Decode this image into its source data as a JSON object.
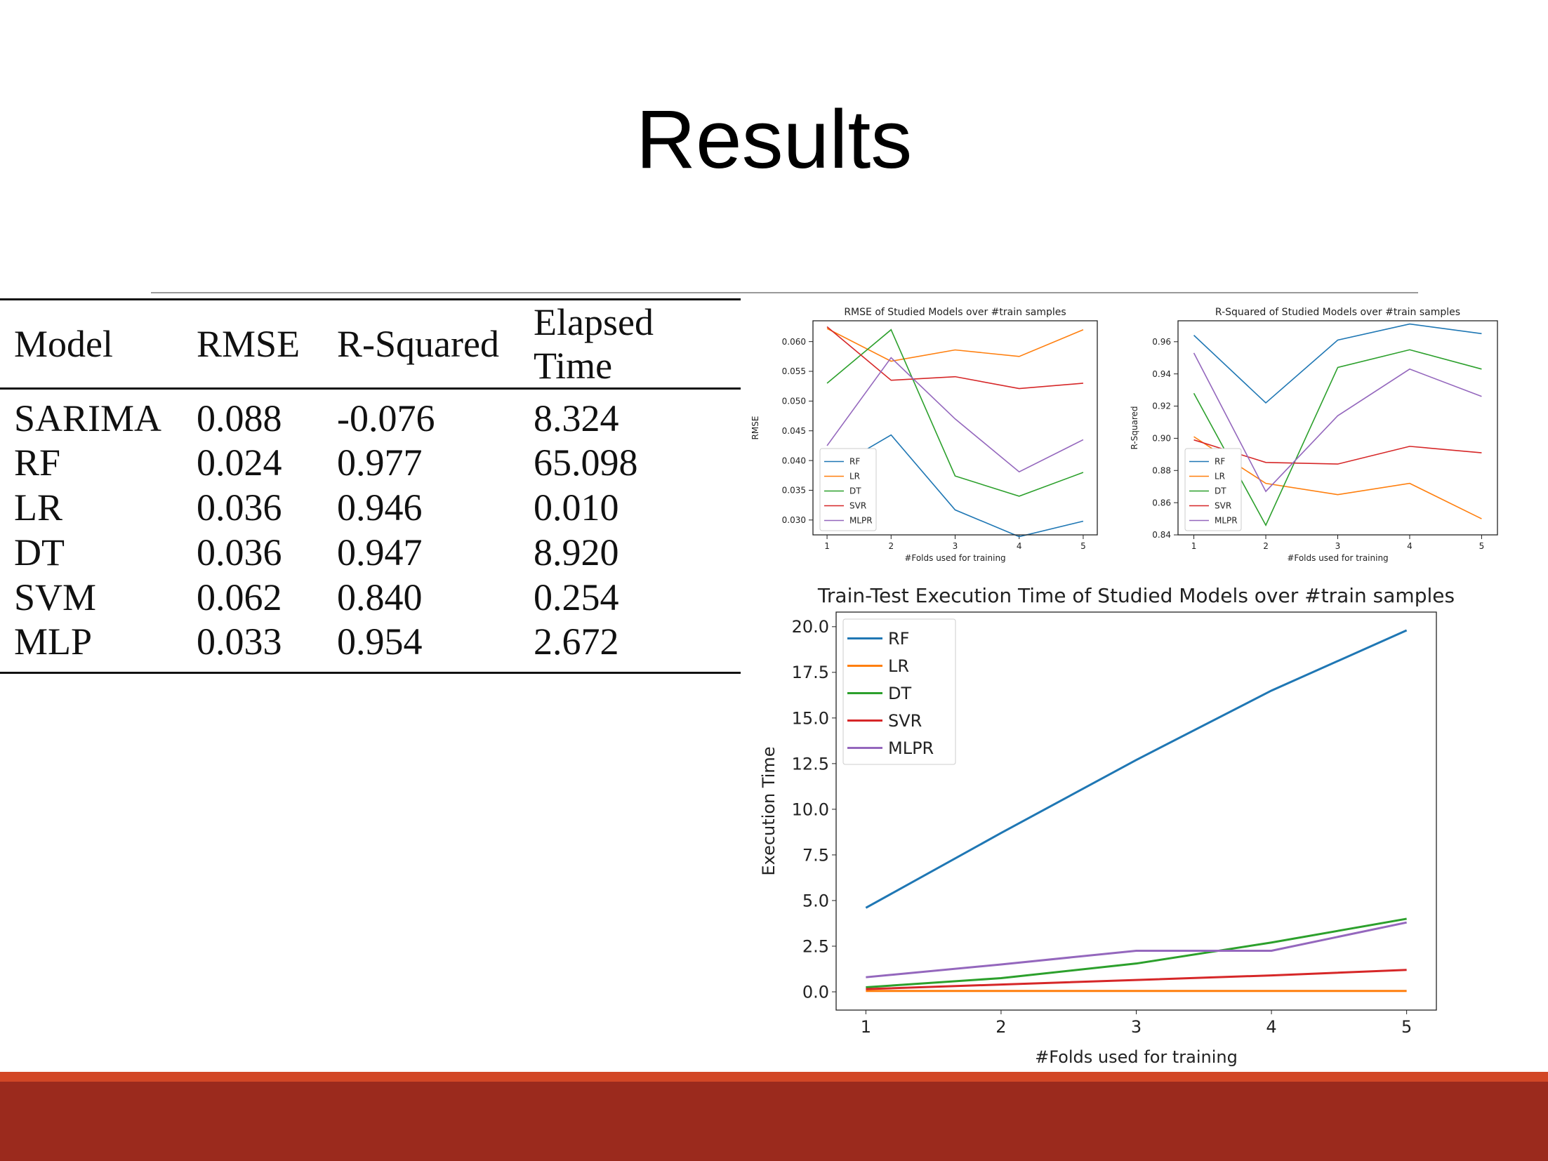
{
  "slide": {
    "title": "Results"
  },
  "table": {
    "headers": [
      "Model",
      "RMSE",
      "R-Squared",
      "Elapsed Time"
    ],
    "rows": [
      [
        "SARIMA",
        "0.088",
        "-0.076",
        "8.324"
      ],
      [
        "RF",
        "0.024",
        "0.977",
        "65.098"
      ],
      [
        "LR",
        "0.036",
        "0.946",
        "0.010"
      ],
      [
        "DT",
        "0.036",
        "0.947",
        "8.920"
      ],
      [
        "SVM",
        "0.062",
        "0.840",
        "0.254"
      ],
      [
        "MLP",
        "0.033",
        "0.954",
        "2.672"
      ]
    ]
  },
  "chart_data": [
    {
      "type": "line",
      "title": "RMSE of Studied Models over #train samples",
      "xlabel": "#Folds used for training",
      "ylabel": "RMSE",
      "x": [
        1,
        2,
        3,
        4,
        5
      ],
      "xticks": [
        "1",
        "2",
        "3",
        "4",
        "5"
      ],
      "ylim": [
        0.0275,
        0.0635
      ],
      "yticks": [
        0.03,
        0.035,
        0.04,
        0.045,
        0.05,
        0.055,
        0.06
      ],
      "ytick_labels": [
        "0.030",
        "0.035",
        "0.040",
        "0.045",
        "0.050",
        "0.055",
        "0.060"
      ],
      "legend_position": "lower-left",
      "series": [
        {
          "name": "RF",
          "color": "#1f77b4",
          "values": [
            0.038,
            0.0443,
            0.0317,
            0.0272,
            0.0298
          ]
        },
        {
          "name": "LR",
          "color": "#ff7f0e",
          "values": [
            0.0622,
            0.0567,
            0.0586,
            0.0575,
            0.062
          ]
        },
        {
          "name": "DT",
          "color": "#2ca02c",
          "values": [
            0.053,
            0.062,
            0.0374,
            0.034,
            0.038
          ]
        },
        {
          "name": "SVR",
          "color": "#d62728",
          "values": [
            0.0625,
            0.0535,
            0.0541,
            0.0521,
            0.053
          ]
        },
        {
          "name": "MLPR",
          "color": "#9467bd",
          "values": [
            0.0425,
            0.0573,
            0.047,
            0.0381,
            0.0435
          ]
        }
      ]
    },
    {
      "type": "line",
      "title": "R-Squared of Studied Models over #train samples",
      "xlabel": "#Folds used for training",
      "ylabel": "R-Squared",
      "x": [
        1,
        2,
        3,
        4,
        5
      ],
      "xticks": [
        "1",
        "2",
        "3",
        "4",
        "5"
      ],
      "ylim": [
        0.84,
        0.973
      ],
      "yticks": [
        0.84,
        0.86,
        0.88,
        0.9,
        0.92,
        0.94,
        0.96
      ],
      "ytick_labels": [
        "0.84",
        "0.86",
        "0.88",
        "0.90",
        "0.92",
        "0.94",
        "0.96"
      ],
      "legend_position": "lower-left",
      "series": [
        {
          "name": "RF",
          "color": "#1f77b4",
          "values": [
            0.964,
            0.922,
            0.961,
            0.971,
            0.965
          ]
        },
        {
          "name": "LR",
          "color": "#ff7f0e",
          "values": [
            0.901,
            0.872,
            0.865,
            0.872,
            0.85
          ]
        },
        {
          "name": "DT",
          "color": "#2ca02c",
          "values": [
            0.928,
            0.846,
            0.944,
            0.955,
            0.943
          ]
        },
        {
          "name": "SVR",
          "color": "#d62728",
          "values": [
            0.899,
            0.885,
            0.884,
            0.895,
            0.891
          ]
        },
        {
          "name": "MLPR",
          "color": "#9467bd",
          "values": [
            0.953,
            0.867,
            0.914,
            0.943,
            0.926
          ]
        }
      ]
    },
    {
      "type": "line",
      "title": "Train-Test Execution Time of Studied Models over #train samples",
      "xlabel": "#Folds used for training",
      "ylabel": "Execution Time",
      "x": [
        1,
        2,
        3,
        4,
        5
      ],
      "xticks": [
        "1",
        "2",
        "3",
        "4",
        "5"
      ],
      "ylim": [
        -1.0,
        20.8
      ],
      "yticks": [
        0.0,
        2.5,
        5.0,
        7.5,
        10.0,
        12.5,
        15.0,
        17.5,
        20.0
      ],
      "ytick_labels": [
        "0.0",
        "2.5",
        "5.0",
        "7.5",
        "10.0",
        "12.5",
        "15.0",
        "17.5",
        "20.0"
      ],
      "legend_position": "top-left",
      "series": [
        {
          "name": "RF",
          "color": "#1f77b4",
          "values": [
            4.6,
            8.7,
            12.7,
            16.5,
            19.8
          ]
        },
        {
          "name": "LR",
          "color": "#ff7f0e",
          "values": [
            0.05,
            0.05,
            0.05,
            0.05,
            0.05
          ]
        },
        {
          "name": "DT",
          "color": "#2ca02c",
          "values": [
            0.25,
            0.75,
            1.55,
            2.7,
            4.0
          ]
        },
        {
          "name": "SVR",
          "color": "#d62728",
          "values": [
            0.15,
            0.4,
            0.65,
            0.9,
            1.2
          ]
        },
        {
          "name": "MLPR",
          "color": "#9467bd",
          "values": [
            0.8,
            1.5,
            2.25,
            2.25,
            3.8
          ]
        }
      ]
    }
  ],
  "colors": {
    "footer_stripe": "#d24726",
    "footer_bar": "#9b2a1d"
  }
}
